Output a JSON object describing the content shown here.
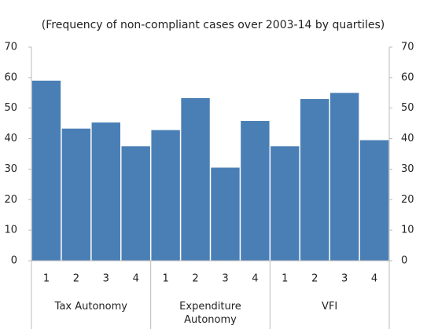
{
  "chart_data": {
    "type": "bar",
    "title": "(Frequency of non-compliant cases over 2003-14 by quartiles)",
    "categories": [
      "1",
      "2",
      "3",
      "4",
      "1",
      "2",
      "3",
      "4",
      "1",
      "2",
      "3",
      "4"
    ],
    "groups": [
      "Tax Autonomy",
      "Expenditure Autonomy",
      "VFI"
    ],
    "values": [
      59,
      43.3,
      45.3,
      37.5,
      42.8,
      53.3,
      30.5,
      45.8,
      37.5,
      53,
      55,
      39.5
    ],
    "color": "#4a7fb5",
    "ylim": [
      0,
      70
    ],
    "yticks": [
      0,
      10,
      20,
      30,
      40,
      50,
      60,
      70
    ],
    "y2lim": [
      0,
      70
    ],
    "y2ticks": [
      0,
      10,
      20,
      30,
      40,
      50,
      60,
      70
    ]
  }
}
